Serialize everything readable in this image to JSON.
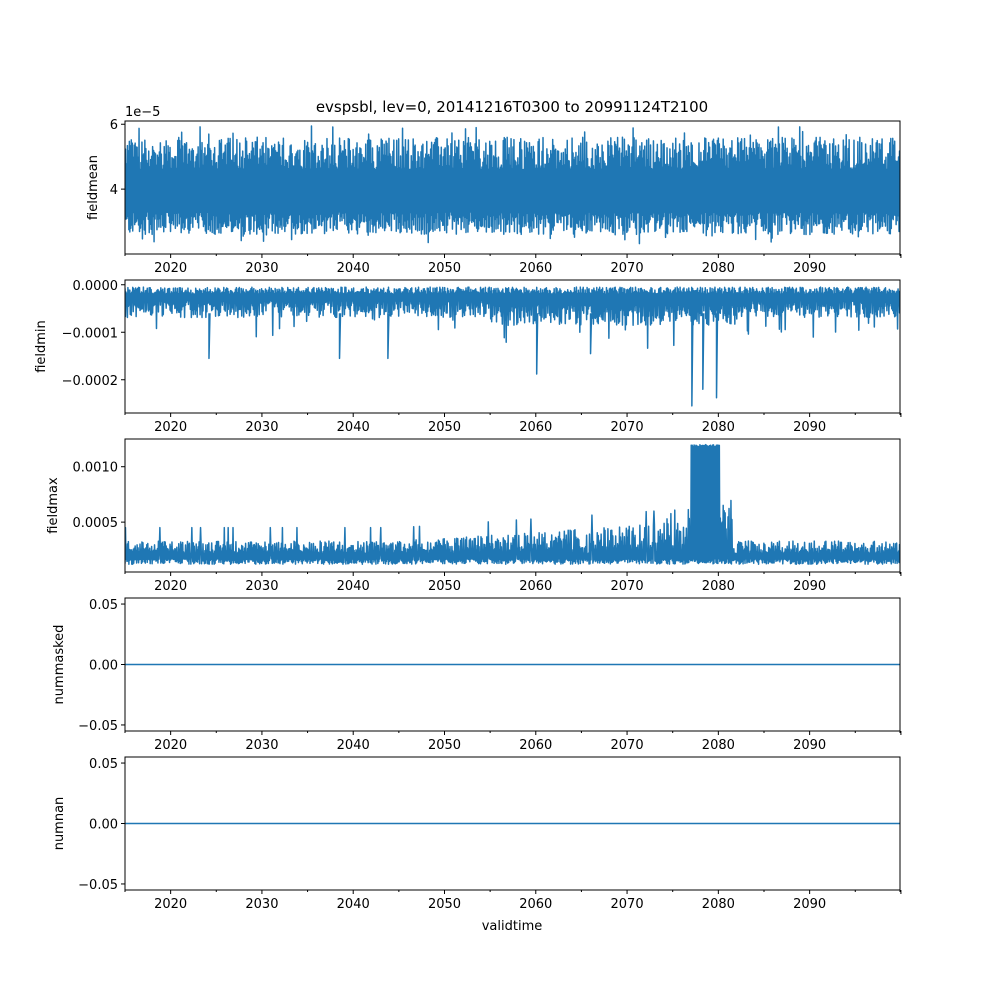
{
  "chart_data": {
    "title": "evspsbl, lev=0, 20141216T0300 to 20991124T2100",
    "xlabel": "validtime",
    "xlim": [
      2015.0,
      2099.9
    ],
    "x_ticks": [
      2020,
      2030,
      2040,
      2050,
      2060,
      2070,
      2080,
      2090
    ],
    "x_tick_labels": [
      "2020",
      "2030",
      "2040",
      "2050",
      "2060",
      "2070",
      "2080",
      "2090"
    ],
    "color": "#1f77b4",
    "panels": [
      {
        "type": "line",
        "ylabel": "fieldmean",
        "offset_text": "1e−5",
        "ylim": [
          2.0,
          6.1
        ],
        "y_ticks": [
          4,
          6
        ],
        "y_tick_labels": [
          "4",
          "6"
        ],
        "band": {
          "low": [
            2.6,
            3.3
          ],
          "high": [
            4.6,
            5.6
          ],
          "min": 2.3,
          "max": 5.95
        }
      },
      {
        "type": "line",
        "ylabel": "fieldmin",
        "ylim": [
          -0.00027,
          1e-05
        ],
        "y_ticks": [
          0.0,
          -0.0001,
          -0.0002
        ],
        "y_tick_labels": [
          "0.0000",
          "−0.0001",
          "−0.0002"
        ],
        "band": {
          "top": -5e-06,
          "bottom": -6e-05
        },
        "spikes": [
          {
            "year": 2024.2,
            "value": -0.000155
          },
          {
            "year": 2038.5,
            "value": -0.000155
          },
          {
            "year": 2043.8,
            "value": -0.000155
          },
          {
            "year": 2060.1,
            "value": -0.000188
          },
          {
            "year": 2066.0,
            "value": -0.000145
          },
          {
            "year": 2077.1,
            "value": -0.000255
          },
          {
            "year": 2078.3,
            "value": -0.00022
          },
          {
            "year": 2079.8,
            "value": -0.000238
          }
        ]
      },
      {
        "type": "line",
        "ylabel": "fieldmax",
        "ylim": [
          5e-05,
          0.00125
        ],
        "y_ticks": [
          0.0005,
          0.001
        ],
        "y_tick_labels": [
          "0.0005",
          "0.0010"
        ],
        "band": {
          "low": 0.00012,
          "high": 0.00033
        },
        "plateau": {
          "start": 2077.0,
          "end": 2080.2,
          "value": 0.0012
        },
        "peak_region": [
          2073.0,
          2081.5
        ]
      },
      {
        "type": "line",
        "ylabel": "nummasked",
        "ylim": [
          -0.055,
          0.055
        ],
        "y_ticks": [
          0.05,
          0.0,
          -0.05
        ],
        "y_tick_labels": [
          "0.05",
          "0.00",
          "−0.05"
        ],
        "constant": 0.0
      },
      {
        "type": "line",
        "ylabel": "numnan",
        "ylim": [
          -0.055,
          0.055
        ],
        "y_ticks": [
          0.05,
          0.0,
          -0.05
        ],
        "y_tick_labels": [
          "0.05",
          "0.00",
          "−0.05"
        ],
        "constant": 0.0
      }
    ]
  }
}
